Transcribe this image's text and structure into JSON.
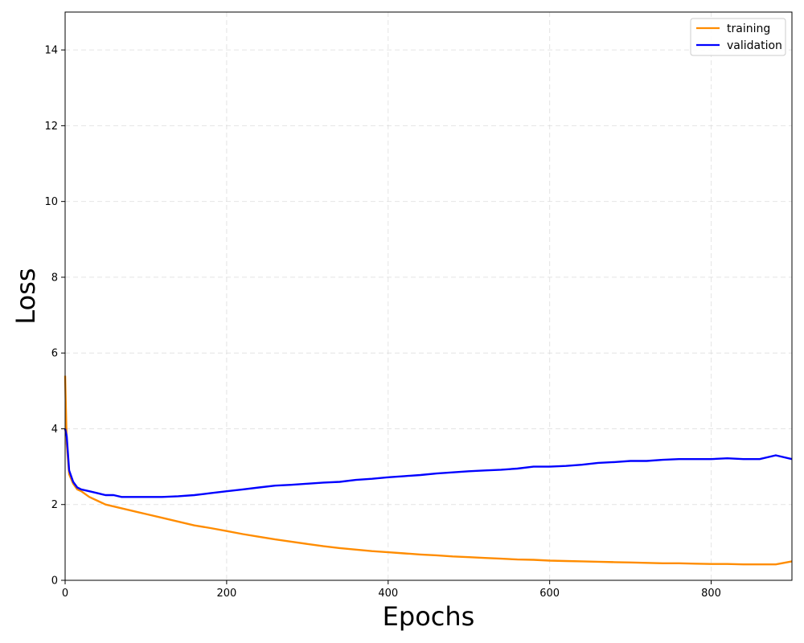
{
  "chart_data": {
    "type": "line",
    "xlabel": "Epochs",
    "ylabel": "Loss",
    "xlim": [
      0,
      900
    ],
    "ylim": [
      0,
      15
    ],
    "xticks": [
      0,
      200,
      400,
      600,
      800
    ],
    "yticks": [
      0,
      2,
      4,
      6,
      8,
      10,
      12,
      14
    ],
    "grid": true,
    "legend_position": "top-right",
    "series": [
      {
        "name": "training",
        "color": "#ff8c00",
        "x": [
          0,
          2,
          5,
          10,
          15,
          20,
          30,
          40,
          50,
          60,
          70,
          80,
          90,
          100,
          120,
          140,
          160,
          180,
          200,
          220,
          240,
          260,
          280,
          300,
          320,
          340,
          360,
          380,
          400,
          420,
          440,
          460,
          480,
          500,
          520,
          540,
          560,
          580,
          600,
          620,
          640,
          660,
          680,
          700,
          720,
          740,
          760,
          780,
          800,
          820,
          840,
          860,
          880,
          900
        ],
        "y": [
          5.4,
          3.6,
          2.8,
          2.55,
          2.4,
          2.35,
          2.2,
          2.1,
          2.0,
          1.95,
          1.9,
          1.85,
          1.8,
          1.75,
          1.65,
          1.55,
          1.45,
          1.38,
          1.3,
          1.22,
          1.15,
          1.08,
          1.02,
          0.96,
          0.9,
          0.85,
          0.81,
          0.77,
          0.74,
          0.71,
          0.68,
          0.66,
          0.63,
          0.61,
          0.59,
          0.57,
          0.55,
          0.54,
          0.52,
          0.51,
          0.5,
          0.49,
          0.48,
          0.47,
          0.46,
          0.45,
          0.45,
          0.44,
          0.43,
          0.43,
          0.42,
          0.42,
          0.42,
          0.5
        ]
      },
      {
        "name": "validation",
        "color": "#0000ff",
        "x": [
          0,
          2,
          5,
          10,
          15,
          20,
          30,
          40,
          50,
          60,
          70,
          80,
          90,
          100,
          120,
          140,
          160,
          180,
          200,
          220,
          240,
          260,
          280,
          300,
          320,
          340,
          360,
          380,
          400,
          420,
          440,
          460,
          480,
          500,
          520,
          540,
          560,
          580,
          600,
          620,
          640,
          660,
          680,
          700,
          720,
          740,
          760,
          780,
          800,
          820,
          840,
          860,
          880,
          900
        ],
        "y": [
          4.0,
          3.8,
          2.9,
          2.6,
          2.45,
          2.4,
          2.35,
          2.3,
          2.25,
          2.25,
          2.2,
          2.2,
          2.2,
          2.2,
          2.2,
          2.22,
          2.25,
          2.3,
          2.35,
          2.4,
          2.45,
          2.5,
          2.52,
          2.55,
          2.58,
          2.6,
          2.65,
          2.68,
          2.72,
          2.75,
          2.78,
          2.82,
          2.85,
          2.88,
          2.9,
          2.92,
          2.95,
          3.0,
          3.0,
          3.02,
          3.05,
          3.1,
          3.12,
          3.15,
          3.15,
          3.18,
          3.2,
          3.2,
          3.2,
          3.22,
          3.2,
          3.2,
          3.3,
          3.2
        ]
      }
    ]
  }
}
